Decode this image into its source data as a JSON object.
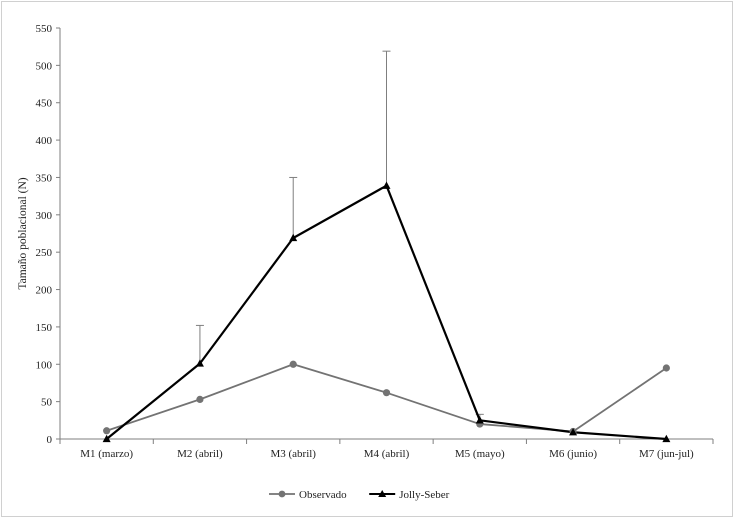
{
  "chart_data": {
    "type": "line",
    "categories": [
      "M1 (marzo)",
      "M2 (abril)",
      "M3 (abril)",
      "M4 (abril)",
      "M5 (mayo)",
      "M6 (junio)",
      "M7 (jun-jul)"
    ],
    "ylabel": "Tamaño poblacional (N)",
    "xlabel": "",
    "ylim": [
      0,
      550
    ],
    "yticks": [
      0,
      50,
      100,
      150,
      200,
      250,
      300,
      350,
      400,
      450,
      500,
      550
    ],
    "grid": false,
    "legend_position": "bottom",
    "series": [
      {
        "name": "Observado",
        "marker": "circle",
        "color": "#737373",
        "values": [
          11,
          53,
          100,
          62,
          20,
          10,
          95
        ]
      },
      {
        "name": "Jolly-Seber",
        "marker": "triangle",
        "color": "#000000",
        "values": [
          0,
          101,
          269,
          339,
          25,
          9,
          0
        ],
        "error_upper": [
          null,
          152,
          350,
          519,
          33,
          null,
          null
        ]
      }
    ]
  }
}
